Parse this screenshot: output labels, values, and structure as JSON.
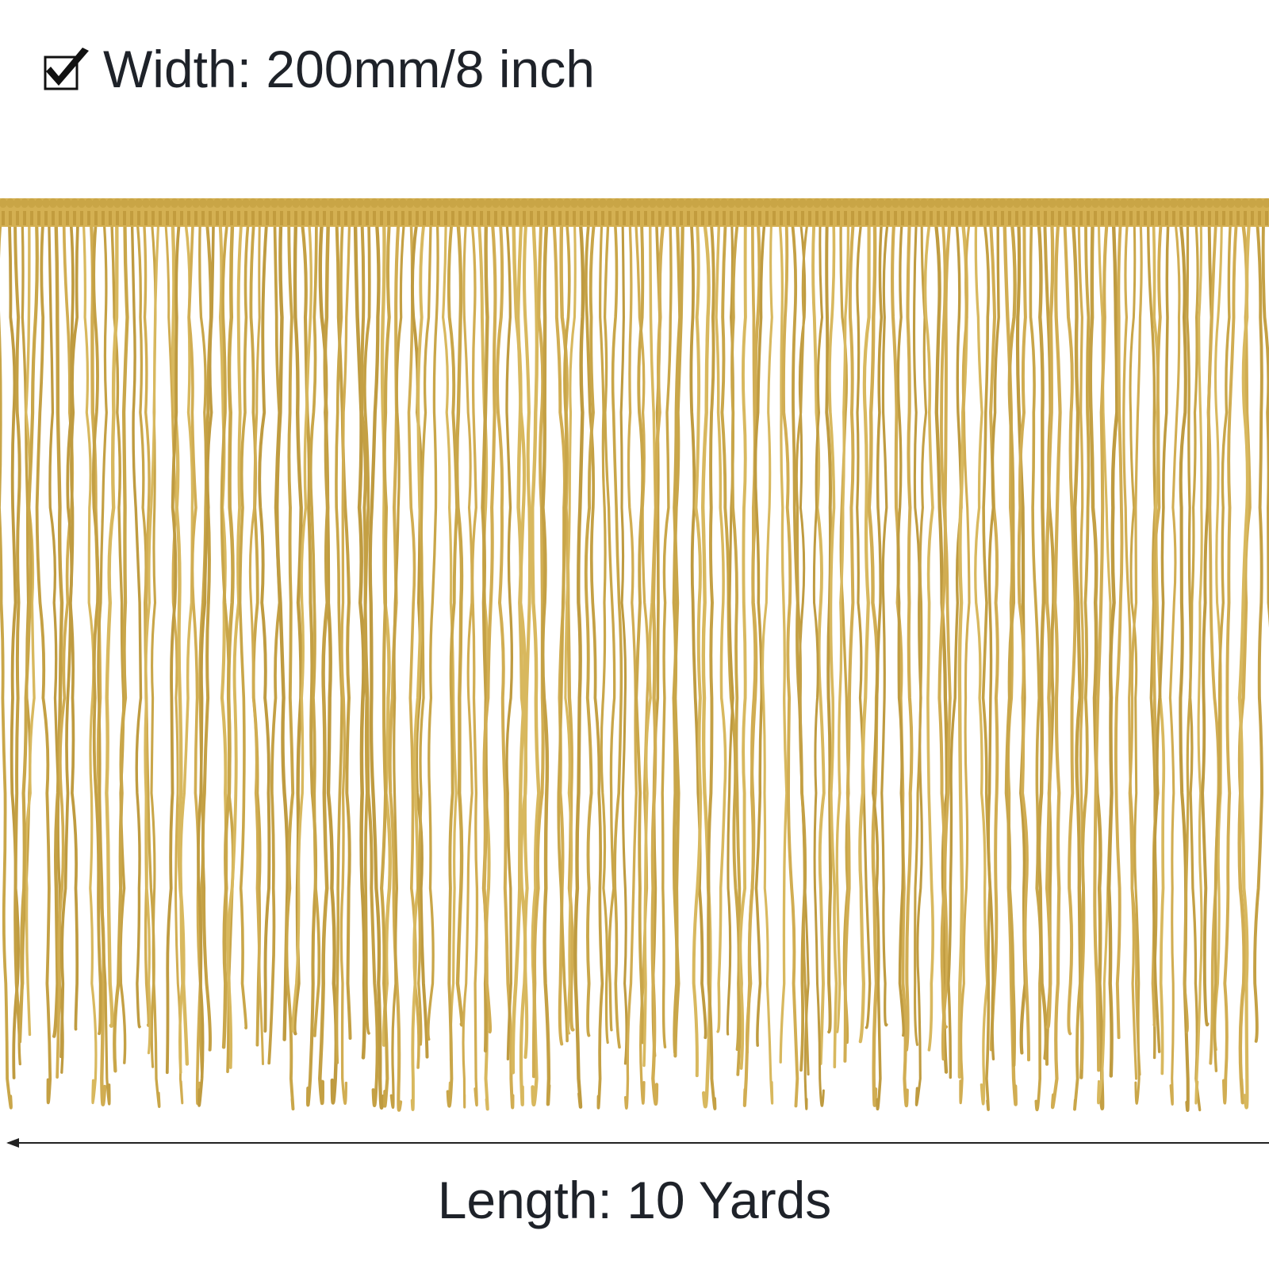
{
  "header": {
    "width_label": "Width: 200mm/8 inch"
  },
  "footer": {
    "length_label": "Length: 10 Yards"
  }
}
